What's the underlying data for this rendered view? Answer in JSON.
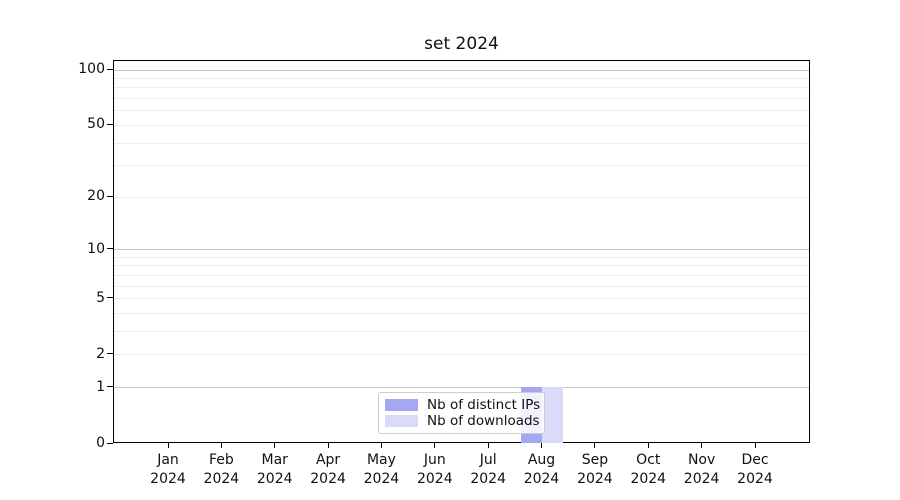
{
  "chart_data": {
    "type": "bar",
    "title": "set 2024",
    "categories": [
      "Jan",
      "Feb",
      "Mar",
      "Apr",
      "May",
      "Jun",
      "Jul",
      "Aug",
      "Sep",
      "Oct",
      "Nov",
      "Dec"
    ],
    "category_year": "2024",
    "series": [
      {
        "name": "Nb of distinct IPs",
        "color": "#a4a8f0",
        "values": [
          0,
          0,
          0,
          0,
          0,
          0,
          0,
          1,
          0,
          0,
          0,
          0
        ]
      },
      {
        "name": "Nb of downloads",
        "color": "#d9dbf8",
        "values": [
          0,
          0,
          0,
          0,
          0,
          0,
          0,
          1,
          0,
          0,
          0,
          0
        ]
      }
    ],
    "yscale": "log1p",
    "ylim": [
      0,
      112
    ],
    "yticks": [
      0,
      1,
      2,
      5,
      10,
      20,
      50,
      100
    ],
    "grid_major": [
      1,
      10,
      100
    ],
    "grid_minor": [
      2,
      3,
      4,
      5,
      6,
      7,
      8,
      9,
      20,
      30,
      40,
      50,
      60,
      70,
      80,
      90
    ],
    "grid_on": true,
    "legend_position": "lower center",
    "colors": {
      "grid_major": "#c9c9c9",
      "grid_minor": "#ededed",
      "spine": "#000000",
      "background": "#ffffff"
    }
  }
}
